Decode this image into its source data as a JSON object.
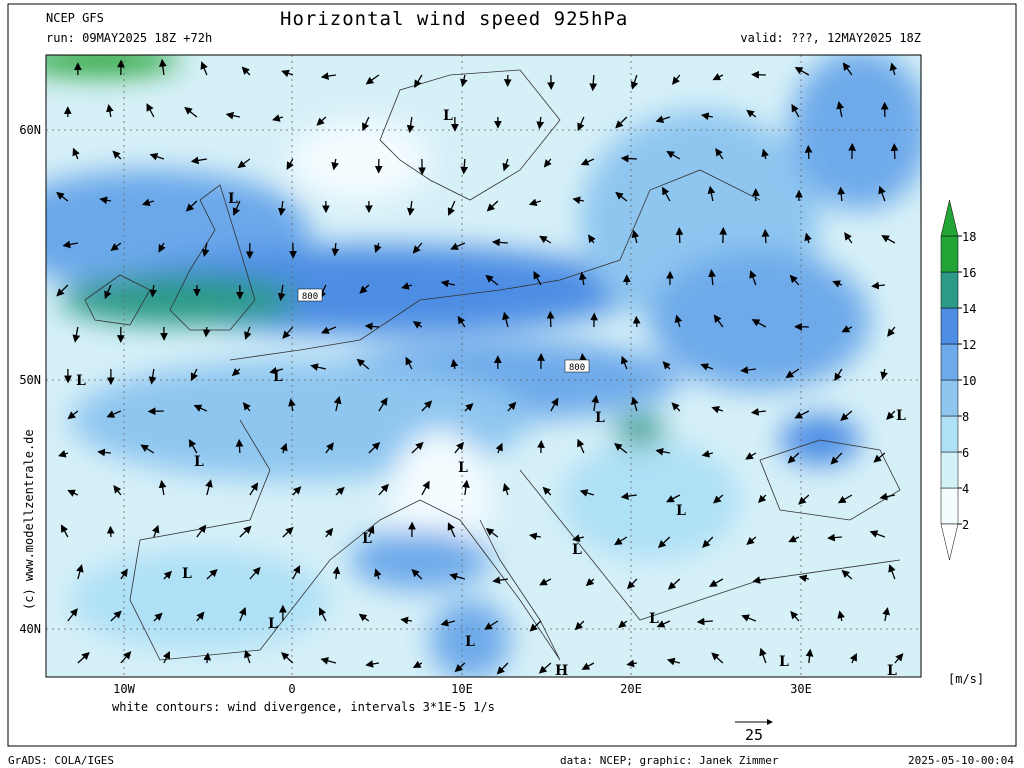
{
  "header": {
    "model": "NCEP GFS",
    "title": "Horizontal wind speed 925hPa",
    "run": "run: 09MAY2025 18Z +72h",
    "valid": "valid: ???, 12MAY2025 18Z"
  },
  "map": {
    "lat_labels": [
      "60N",
      "50N",
      "40N"
    ],
    "lon_labels": [
      "10W",
      "0",
      "10E",
      "20E",
      "30E"
    ],
    "lows": [
      "L",
      "L",
      "L",
      "L",
      "L",
      "L",
      "L",
      "L",
      "L",
      "L",
      "L",
      "L",
      "L",
      "L",
      "L",
      "L",
      "L"
    ],
    "highs": [
      "H"
    ],
    "contour_labels": [
      "800",
      "800"
    ]
  },
  "colorbar": {
    "unit": "[m/s]",
    "ticks": [
      2,
      4,
      6,
      8,
      10,
      12,
      14,
      16,
      18
    ],
    "colors": [
      "#f4fcff",
      "#d2f2f8",
      "#aee0f6",
      "#8ec6f0",
      "#6eaaea",
      "#4e8ee4",
      "#2c9a86",
      "#22a436"
    ]
  },
  "footer": {
    "note": "white contours: wind divergence, intervals 3*1E-5 1/s",
    "vector_ref": "25",
    "copyright": "(c) www.modellzentrale.de",
    "grads": "GrADS: COLA/IGES",
    "credit": "data: NCEP; graphic: Janek Zimmer",
    "timestamp": "2025-05-10-00:04"
  }
}
